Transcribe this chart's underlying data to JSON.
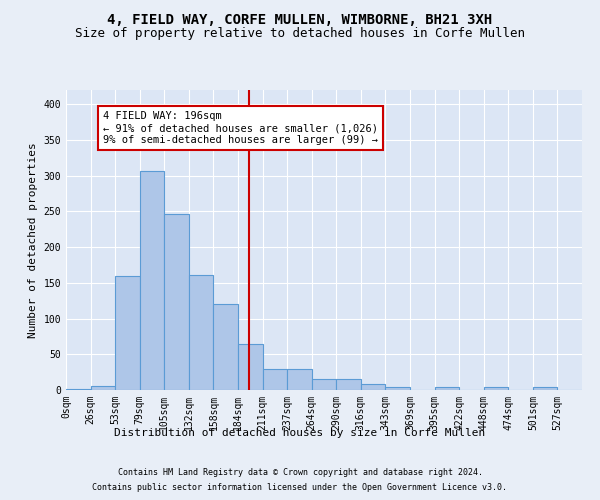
{
  "title": "4, FIELD WAY, CORFE MULLEN, WIMBORNE, BH21 3XH",
  "subtitle": "Size of property relative to detached houses in Corfe Mullen",
  "xlabel": "Distribution of detached houses by size in Corfe Mullen",
  "ylabel": "Number of detached properties",
  "footer1": "Contains HM Land Registry data © Crown copyright and database right 2024.",
  "footer2": "Contains public sector information licensed under the Open Government Licence v3.0.",
  "bin_labels": [
    "0sqm",
    "26sqm",
    "53sqm",
    "79sqm",
    "105sqm",
    "132sqm",
    "158sqm",
    "184sqm",
    "211sqm",
    "237sqm",
    "264sqm",
    "290sqm",
    "316sqm",
    "343sqm",
    "369sqm",
    "395sqm",
    "422sqm",
    "448sqm",
    "474sqm",
    "501sqm",
    "527sqm"
  ],
  "bar_values": [
    2,
    5,
    160,
    307,
    247,
    161,
    121,
    64,
    30,
    30,
    15,
    15,
    9,
    4,
    0,
    4,
    0,
    4,
    0,
    4,
    0
  ],
  "bar_color": "#aec6e8",
  "bar_edge_color": "#5b9bd5",
  "vline_color": "#cc0000",
  "annotation_text": "4 FIELD WAY: 196sqm\n← 91% of detached houses are smaller (1,026)\n9% of semi-detached houses are larger (99) →",
  "annotation_box_color": "#cc0000",
  "ylim": [
    0,
    420
  ],
  "yticks": [
    0,
    50,
    100,
    150,
    200,
    250,
    300,
    350,
    400
  ],
  "bg_color": "#e8eef7",
  "plot_bg_color": "#dce6f5",
  "grid_color": "#ffffff",
  "title_fontsize": 10,
  "subtitle_fontsize": 9,
  "axis_label_fontsize": 8,
  "tick_fontsize": 7,
  "footer_fontsize": 6,
  "ann_fontsize": 7.5
}
